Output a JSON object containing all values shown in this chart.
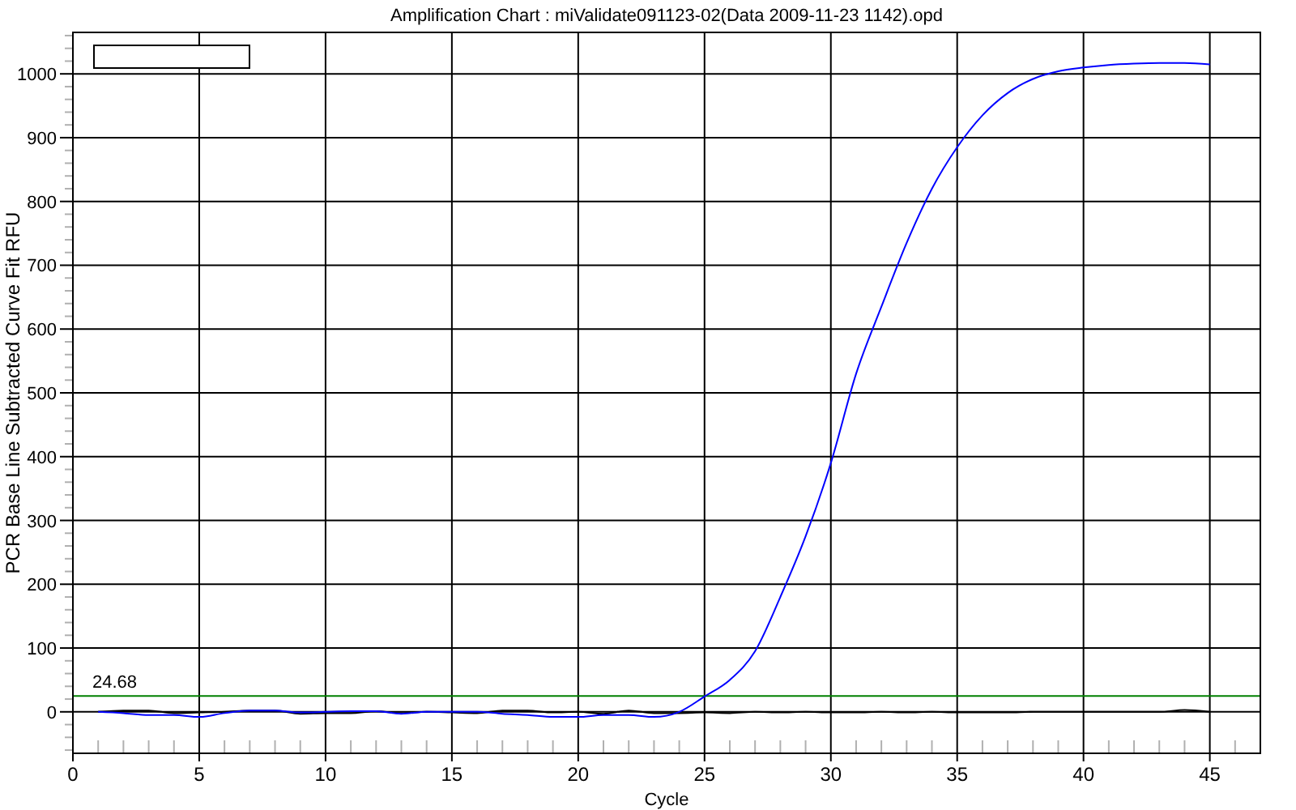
{
  "chart_data": {
    "type": "line",
    "title": "Amplification Chart : miValidate091123-02(Data 2009-11-23 1142).opd",
    "xlabel": "Cycle",
    "ylabel": "PCR Base Line Subtracted Curve Fit RFU",
    "x": [
      1,
      2,
      3,
      4,
      5,
      6,
      7,
      8,
      9,
      10,
      11,
      12,
      13,
      14,
      15,
      16,
      17,
      18,
      19,
      20,
      21,
      22,
      23,
      24,
      25,
      26,
      27,
      28,
      29,
      30,
      31,
      32,
      33,
      34,
      35,
      36,
      37,
      38,
      39,
      40,
      41,
      42,
      43,
      44,
      45
    ],
    "series": [
      {
        "color": "#000000",
        "values": [
          0,
          2,
          2,
          -2,
          -1,
          0,
          2,
          2,
          -3,
          -2,
          -2,
          1,
          -2,
          0,
          -1,
          -2,
          2,
          2,
          -1,
          0,
          -3,
          2,
          -2,
          -2,
          -1,
          -2,
          0,
          -1,
          0,
          -1,
          -1,
          0,
          -1,
          0,
          -1,
          -1,
          -1,
          0,
          0,
          0,
          0,
          0,
          0,
          3,
          0
        ]
      },
      {
        "color": "#0000ff",
        "values": [
          0,
          -2,
          -5,
          -5,
          -8,
          -2,
          2,
          2,
          -1,
          0,
          1,
          1,
          -3,
          0,
          0,
          0,
          -3,
          -5,
          -8,
          -8,
          -5,
          -5,
          -8,
          0,
          24,
          50,
          95,
          180,
          275,
          390,
          530,
          635,
          735,
          820,
          885,
          935,
          970,
          992,
          1004,
          1010,
          1014,
          1016,
          1017,
          1017,
          1015
        ]
      }
    ],
    "xlim": [
      0,
      47
    ],
    "ylim": [
      -65,
      1065
    ],
    "xticks": [
      0,
      {
        "value": 1,
        "label": null
      },
      {
        "value": 2,
        "label": null
      },
      {
        "value": 3,
        "label": null
      },
      {
        "value": 4,
        "label": null
      },
      5,
      {
        "value": 6,
        "label": null
      },
      {
        "value": 7,
        "label": null
      },
      {
        "value": 8,
        "label": null
      },
      {
        "value": 9,
        "label": null
      },
      10,
      {
        "value": 11,
        "label": null
      },
      {
        "value": 12,
        "label": null
      },
      {
        "value": 13,
        "label": null
      },
      {
        "value": 14,
        "label": null
      },
      15,
      {
        "value": 16,
        "label": null
      },
      {
        "value": 17,
        "label": null
      },
      {
        "value": 18,
        "label": null
      },
      {
        "value": 19,
        "label": null
      },
      20,
      {
        "value": 21,
        "label": null
      },
      {
        "value": 22,
        "label": null
      },
      {
        "value": 23,
        "label": null
      },
      {
        "value": 24,
        "label": null
      },
      25,
      {
        "value": 26,
        "label": null
      },
      {
        "value": 27,
        "label": null
      },
      {
        "value": 28,
        "label": null
      },
      {
        "value": 29,
        "label": null
      },
      30,
      {
        "value": 31,
        "label": null
      },
      {
        "value": 32,
        "label": null
      },
      {
        "value": 33,
        "label": null
      },
      {
        "value": 34,
        "label": null
      },
      35,
      {
        "value": 36,
        "label": null
      },
      {
        "value": 37,
        "label": null
      },
      {
        "value": 38,
        "label": null
      },
      {
        "value": 39,
        "label": null
      },
      40,
      {
        "value": 41,
        "label": null
      },
      {
        "value": 42,
        "label": null
      },
      {
        "value": 43,
        "label": null
      },
      {
        "value": 44,
        "label": null
      },
      45,
      {
        "value": 46,
        "label": null
      }
    ],
    "yticks": [
      {
        "value": -60,
        "label": null
      },
      {
        "value": -40,
        "label": null
      },
      {
        "value": -20,
        "label": null
      },
      0,
      {
        "value": 20,
        "label": null
      },
      {
        "value": 40,
        "label": null
      },
      {
        "value": 60,
        "label": null
      },
      {
        "value": 80,
        "label": null
      },
      100,
      {
        "value": 120,
        "label": null
      },
      {
        "value": 140,
        "label": null
      },
      {
        "value": 160,
        "label": null
      },
      {
        "value": 180,
        "label": null
      },
      200,
      {
        "value": 220,
        "label": null
      },
      {
        "value": 240,
        "label": null
      },
      {
        "value": 260,
        "label": null
      },
      {
        "value": 280,
        "label": null
      },
      300,
      {
        "value": 320,
        "label": null
      },
      {
        "value": 340,
        "label": null
      },
      {
        "value": 360,
        "label": null
      },
      {
        "value": 380,
        "label": null
      },
      400,
      {
        "value": 420,
        "label": null
      },
      {
        "value": 440,
        "label": null
      },
      {
        "value": 460,
        "label": null
      },
      {
        "value": 480,
        "label": null
      },
      500,
      {
        "value": 520,
        "label": null
      },
      {
        "value": 540,
        "label": null
      },
      {
        "value": 560,
        "label": null
      },
      {
        "value": 580,
        "label": null
      },
      600,
      {
        "value": 620,
        "label": null
      },
      {
        "value": 640,
        "label": null
      },
      {
        "value": 660,
        "label": null
      },
      {
        "value": 680,
        "label": null
      },
      700,
      {
        "value": 720,
        "label": null
      },
      {
        "value": 740,
        "label": null
      },
      {
        "value": 760,
        "label": null
      },
      {
        "value": 780,
        "label": null
      },
      800,
      {
        "value": 820,
        "label": null
      },
      {
        "value": 840,
        "label": null
      },
      {
        "value": 860,
        "label": null
      },
      {
        "value": 880,
        "label": null
      },
      900,
      {
        "value": 920,
        "label": null
      },
      {
        "value": 940,
        "label": null
      },
      {
        "value": 960,
        "label": null
      },
      {
        "value": 980,
        "label": null
      },
      1000,
      {
        "value": 1020,
        "label": null
      },
      {
        "value": 1040,
        "label": null
      },
      {
        "value": 1060,
        "label": null
      }
    ],
    "grid": true,
    "ref_lines": [
      {
        "axis": "y",
        "value": 24.68,
        "label": "24.68",
        "color": "#008000"
      }
    ]
  }
}
